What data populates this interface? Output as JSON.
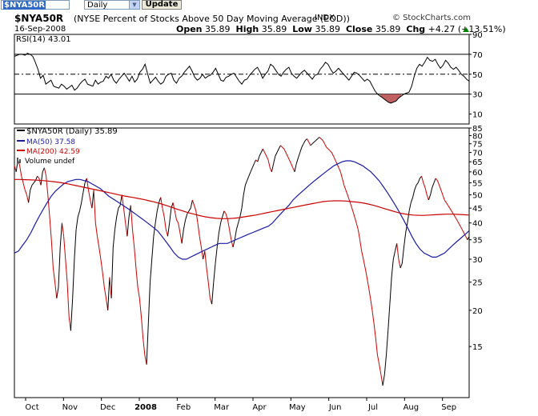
{
  "toolbar": {
    "symbol_value": "$NYA50R",
    "period_value": "Daily",
    "update_label": "Update"
  },
  "header": {
    "symbol": "$NYA50R",
    "description": "(NYSE Percent of Stocks Above 50 Day Moving Average (EOD))",
    "exchange": "INDX",
    "brand": "© StockCharts.com",
    "date": "16-Sep-2008",
    "open_label": "Open",
    "open": "35.89",
    "high_label": "High",
    "high": "35.89",
    "low_label": "Low",
    "low": "35.89",
    "close_label": "Close",
    "close": "35.89",
    "chg_label": "Chg",
    "chg": "+4.27 (+13.51%)",
    "up_color": "#008000"
  },
  "rsi_legend": "RSI(14) 43.01",
  "main_legend": {
    "series": "$NYA50R (Daily) 35.89",
    "ma50": "MA(50) 37.58",
    "ma200": "MA(200) 42.59",
    "volume": "Volume undef"
  },
  "colors": {
    "price": "#000000",
    "price_down": "#cc0000",
    "ma50": "#1a1aa6",
    "ma200": "#cc0000",
    "rsi": "#000000",
    "rsi_oversold_fill": "#c06060"
  },
  "chart_data": [
    {
      "type": "line",
      "title": "RSI(14)",
      "ylim": [
        0,
        90
      ],
      "y_ticks": [
        10,
        30,
        50,
        70,
        90
      ],
      "reference_lines": [
        30,
        50,
        70
      ],
      "values": [
        68,
        69,
        70,
        70,
        69,
        71,
        70,
        68,
        62,
        55,
        46,
        49,
        40,
        42,
        44,
        38,
        37,
        36,
        40,
        38,
        35,
        37,
        39,
        34,
        36,
        40,
        43,
        45,
        40,
        39,
        38,
        44,
        40,
        42,
        43,
        48,
        46,
        50,
        44,
        41,
        45,
        48,
        51,
        47,
        43,
        48,
        42,
        45,
        52,
        55,
        60,
        50,
        41,
        44,
        47,
        43,
        40,
        42,
        48,
        50,
        51,
        44,
        41,
        46,
        48,
        52,
        55,
        58,
        53,
        47,
        44,
        46,
        50,
        46,
        48,
        49,
        52,
        56,
        50,
        44,
        43,
        47,
        48,
        50,
        51,
        47,
        43,
        40,
        44,
        45,
        49,
        52,
        55,
        57,
        52,
        46,
        50,
        53,
        60,
        58,
        54,
        50,
        48,
        52,
        55,
        57,
        51,
        48,
        46,
        49,
        52,
        54,
        51,
        48,
        45,
        49,
        50,
        55,
        58,
        62,
        60,
        55,
        51,
        53,
        56,
        53,
        50,
        47,
        44,
        48,
        52,
        51,
        49,
        46,
        43,
        45,
        43,
        38,
        33,
        30,
        28,
        26,
        24,
        22,
        21,
        22,
        23,
        26,
        28,
        30,
        31,
        32,
        38,
        48,
        56,
        60,
        58,
        62,
        67,
        64,
        63,
        65,
        60,
        56,
        59,
        64,
        61,
        57,
        55,
        57,
        54,
        50,
        48,
        45,
        43
      ]
    },
    {
      "type": "line",
      "title": "$NYA50R (Daily)",
      "x_tick_labels": [
        "Oct",
        "Nov",
        "Dec",
        "2008",
        "Feb",
        "Mar",
        "Apr",
        "May",
        "Jun",
        "Jul",
        "Aug",
        "Sep"
      ],
      "y_ticks": [
        15,
        20,
        25,
        30,
        35,
        40,
        45,
        50,
        55,
        60,
        65,
        70,
        75,
        80,
        85
      ],
      "ylim": [
        10,
        85
      ],
      "y_scale": "log",
      "series": [
        {
          "name": "$NYA50R (Daily)",
          "values": [
            63,
            60,
            66,
            63,
            58,
            55,
            52,
            50,
            47,
            52,
            54,
            55,
            56,
            58,
            57,
            54,
            60,
            62,
            58,
            50,
            42,
            35,
            28,
            25,
            22,
            24,
            33,
            40,
            36,
            30,
            25,
            19,
            17,
            22,
            30,
            38,
            42,
            44,
            47,
            51,
            55,
            57,
            52,
            48,
            45,
            52,
            40,
            36,
            33,
            30,
            27,
            24,
            22,
            20,
            26,
            22,
            33,
            38,
            42,
            45,
            46,
            50,
            45,
            40,
            36,
            42,
            46,
            38,
            33,
            28,
            24,
            22,
            19,
            16,
            14,
            13,
            18,
            25,
            30,
            36,
            40,
            44,
            47,
            49,
            45,
            42,
            38,
            36,
            40,
            45,
            47,
            44,
            41,
            40,
            37,
            34,
            38,
            41,
            43,
            44,
            45,
            48,
            46,
            44,
            40,
            36,
            33,
            30,
            32,
            28,
            25,
            22,
            21,
            25,
            29,
            33,
            37,
            40,
            42,
            44,
            43,
            41,
            38,
            35,
            33,
            35,
            38,
            40,
            42,
            45,
            50,
            54,
            56,
            58,
            60,
            62,
            64,
            66,
            65,
            68,
            70,
            72,
            70,
            68,
            66,
            62,
            60,
            64,
            68,
            70,
            72,
            74,
            73,
            72,
            70,
            68,
            66,
            64,
            62,
            60,
            64,
            67,
            70,
            73,
            75,
            77,
            78,
            76,
            74,
            75,
            76,
            77,
            78,
            79,
            78,
            77,
            75,
            73,
            72,
            71,
            70,
            68,
            66,
            64,
            62,
            60,
            57,
            54,
            52,
            50,
            48,
            46,
            44,
            42,
            40,
            38,
            35,
            32,
            30,
            28,
            26,
            24,
            22,
            20,
            18,
            16,
            14,
            13,
            12,
            11,
            12,
            14,
            17,
            21,
            26,
            30,
            32,
            34,
            30,
            28,
            29,
            33,
            37,
            40,
            44,
            47,
            49,
            52,
            54,
            55,
            57,
            58,
            55,
            53,
            50,
            48,
            50,
            53,
            55,
            57,
            56,
            54,
            52,
            50,
            48,
            47,
            46,
            45,
            44,
            43,
            42,
            41,
            40,
            39,
            38,
            37,
            36,
            35,
            35.89
          ],
          "color": "#000000"
        },
        {
          "name": "MA(50)",
          "values": [
            31.5,
            32,
            33.5,
            35,
            37,
            39.5,
            42,
            44.5,
            47,
            49.5,
            51.5,
            53,
            54.5,
            55.5,
            56,
            56.5,
            56.5,
            56,
            55.5,
            54.5,
            53.5,
            52.5,
            51,
            49.5,
            48.5,
            47.5,
            46.5,
            45.5,
            44.5,
            43.5,
            42.5,
            41.5,
            40.5,
            39.5,
            38.5,
            37.5,
            36,
            34.5,
            33,
            31.5,
            30.5,
            30,
            30,
            30.5,
            31,
            31.5,
            32,
            32.5,
            33,
            33.5,
            34,
            34,
            34,
            34.5,
            35,
            35.5,
            36,
            36.5,
            37,
            37.5,
            38,
            38.5,
            39,
            40,
            41.5,
            43,
            44.5,
            46,
            48,
            49.5,
            51,
            52.5,
            54,
            55.5,
            57,
            58.5,
            60,
            61.5,
            63,
            64,
            65,
            65.5,
            65.5,
            65,
            64,
            63,
            61.5,
            60,
            58,
            56,
            53.5,
            51,
            48.5,
            46,
            43.5,
            41,
            38.5,
            36,
            34,
            32.5,
            31.5,
            31,
            30.5,
            30.5,
            31,
            31.5,
            32.5,
            33.5,
            34.5,
            35.5,
            36.5,
            37.58
          ],
          "color": "#1a1aa6"
        },
        {
          "name": "MA(200)",
          "values": [
            56.5,
            56.5,
            56.4,
            56.3,
            56.2,
            56,
            55.8,
            55.5,
            55.2,
            54.8,
            54.3,
            53.8,
            53.3,
            52.8,
            52.3,
            51.8,
            51.3,
            50.8,
            50.3,
            49.8,
            49.4,
            49,
            48.6,
            48.2,
            47.7,
            47.2,
            46.6,
            46,
            45.3,
            44.6,
            44,
            43.4,
            42.9,
            42.4,
            42,
            41.7,
            41.5,
            41.4,
            41.4,
            41.5,
            41.7,
            42,
            42.3,
            42.6,
            43,
            43.4,
            43.8,
            44.2,
            44.6,
            45,
            45.4,
            45.8,
            46.2,
            46.6,
            47,
            47.4,
            47.6,
            47.7,
            47.7,
            47.6,
            47.4,
            47.2,
            46.9,
            46.5,
            46,
            45.4,
            44.8,
            44.2,
            43.6,
            43.1,
            42.8,
            42.6,
            42.5,
            42.5,
            42.6,
            42.7,
            42.8,
            42.9,
            42.9,
            42.8,
            42.7,
            42.59
          ],
          "color": "#cc0000"
        }
      ]
    }
  ]
}
